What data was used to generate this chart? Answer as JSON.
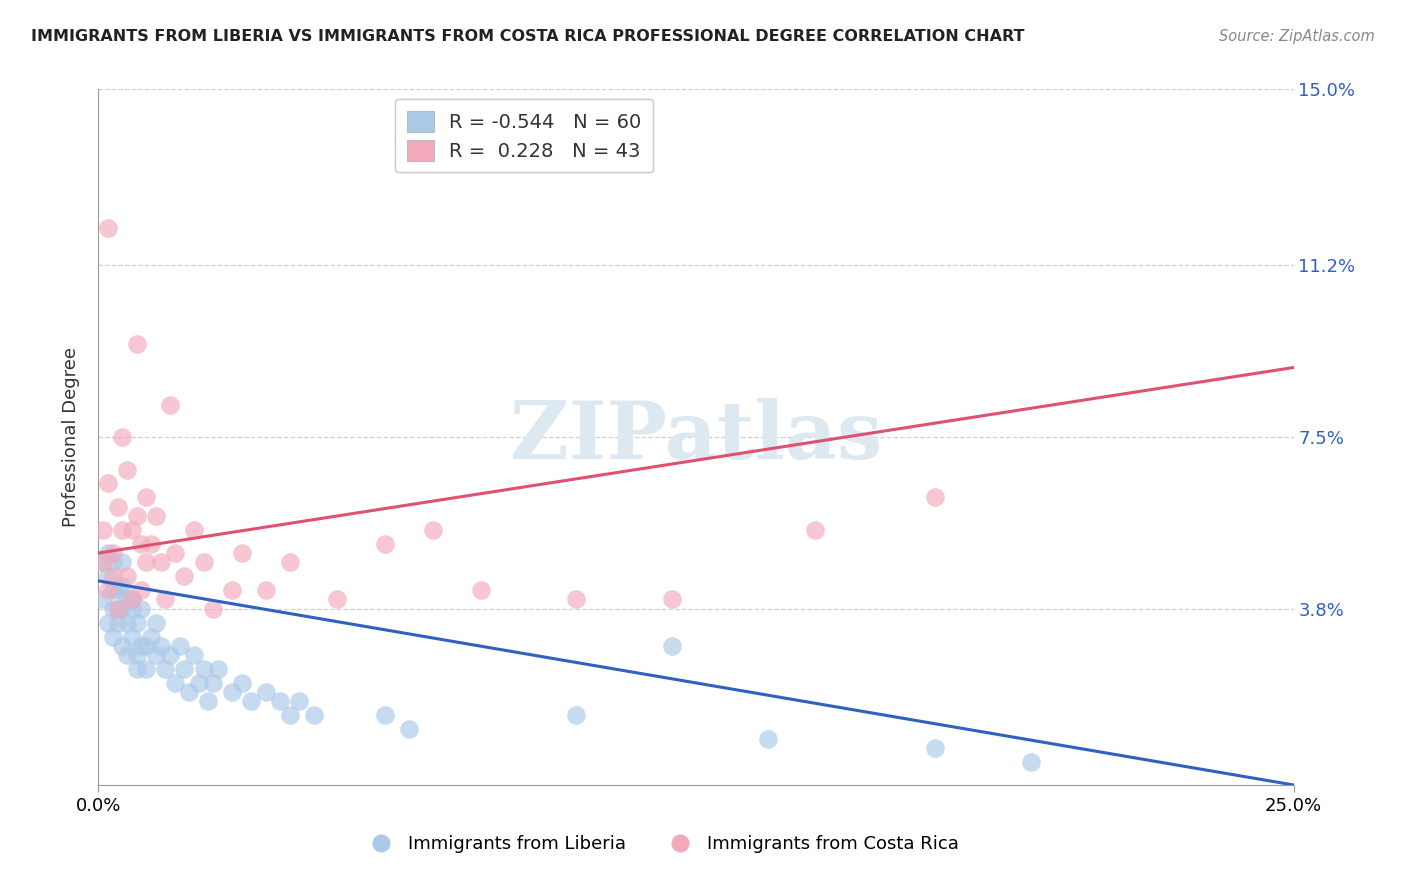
{
  "title": "IMMIGRANTS FROM LIBERIA VS IMMIGRANTS FROM COSTA RICA PROFESSIONAL DEGREE CORRELATION CHART",
  "source": "Source: ZipAtlas.com",
  "ylabel": "Professional Degree",
  "xlim": [
    0.0,
    0.25
  ],
  "ylim": [
    0.0,
    0.15
  ],
  "ytick_values": [
    0.038,
    0.075,
    0.112,
    0.15
  ],
  "ytick_labels": [
    "3.8%",
    "7.5%",
    "11.2%",
    "15.0%"
  ],
  "xtick_values": [
    0.0,
    0.25
  ],
  "xtick_labels": [
    "0.0%",
    "25.0%"
  ],
  "blue_R": -0.544,
  "blue_N": 60,
  "pink_R": 0.228,
  "pink_N": 43,
  "blue_label": "Immigrants from Liberia",
  "pink_label": "Immigrants from Costa Rica",
  "blue_color": "#aac8e8",
  "pink_color": "#f2aabb",
  "blue_line_color": "#3060c0",
  "pink_line_color": "#e05070",
  "watermark_text": "ZIPatlas",
  "watermark_color": "#dde8f0",
  "grid_color": "#d0d0d0",
  "background_color": "#ffffff",
  "blue_line_x0": 0.0,
  "blue_line_y0": 0.044,
  "blue_line_x1": 0.25,
  "blue_line_y1": 0.0,
  "pink_line_x0": 0.0,
  "pink_line_y0": 0.05,
  "pink_line_x1": 0.25,
  "pink_line_y1": 0.09,
  "blue_scatter_x": [
    0.001,
    0.001,
    0.002,
    0.002,
    0.002,
    0.003,
    0.003,
    0.003,
    0.003,
    0.004,
    0.004,
    0.004,
    0.005,
    0.005,
    0.005,
    0.005,
    0.006,
    0.006,
    0.006,
    0.007,
    0.007,
    0.007,
    0.008,
    0.008,
    0.008,
    0.009,
    0.009,
    0.01,
    0.01,
    0.011,
    0.012,
    0.012,
    0.013,
    0.014,
    0.015,
    0.016,
    0.017,
    0.018,
    0.019,
    0.02,
    0.021,
    0.022,
    0.023,
    0.024,
    0.025,
    0.028,
    0.03,
    0.032,
    0.035,
    0.038,
    0.04,
    0.042,
    0.045,
    0.06,
    0.065,
    0.1,
    0.12,
    0.14,
    0.175,
    0.195
  ],
  "blue_scatter_y": [
    0.04,
    0.048,
    0.045,
    0.05,
    0.035,
    0.042,
    0.038,
    0.032,
    0.048,
    0.035,
    0.038,
    0.042,
    0.038,
    0.043,
    0.03,
    0.048,
    0.035,
    0.04,
    0.028,
    0.04,
    0.032,
    0.038,
    0.028,
    0.035,
    0.025,
    0.03,
    0.038,
    0.03,
    0.025,
    0.032,
    0.028,
    0.035,
    0.03,
    0.025,
    0.028,
    0.022,
    0.03,
    0.025,
    0.02,
    0.028,
    0.022,
    0.025,
    0.018,
    0.022,
    0.025,
    0.02,
    0.022,
    0.018,
    0.02,
    0.018,
    0.015,
    0.018,
    0.015,
    0.015,
    0.012,
    0.015,
    0.03,
    0.01,
    0.008,
    0.005
  ],
  "pink_scatter_x": [
    0.001,
    0.001,
    0.002,
    0.002,
    0.003,
    0.003,
    0.004,
    0.004,
    0.005,
    0.005,
    0.006,
    0.006,
    0.007,
    0.007,
    0.008,
    0.008,
    0.009,
    0.009,
    0.01,
    0.01,
    0.011,
    0.012,
    0.013,
    0.014,
    0.015,
    0.016,
    0.018,
    0.02,
    0.022,
    0.024,
    0.028,
    0.03,
    0.035,
    0.04,
    0.05,
    0.06,
    0.07,
    0.08,
    0.1,
    0.12,
    0.15,
    0.175,
    0.002
  ],
  "pink_scatter_y": [
    0.048,
    0.055,
    0.042,
    0.065,
    0.05,
    0.045,
    0.06,
    0.038,
    0.075,
    0.055,
    0.068,
    0.045,
    0.055,
    0.04,
    0.095,
    0.058,
    0.052,
    0.042,
    0.062,
    0.048,
    0.052,
    0.058,
    0.048,
    0.04,
    0.082,
    0.05,
    0.045,
    0.055,
    0.048,
    0.038,
    0.042,
    0.05,
    0.042,
    0.048,
    0.04,
    0.052,
    0.055,
    0.042,
    0.04,
    0.04,
    0.055,
    0.062,
    0.12
  ]
}
